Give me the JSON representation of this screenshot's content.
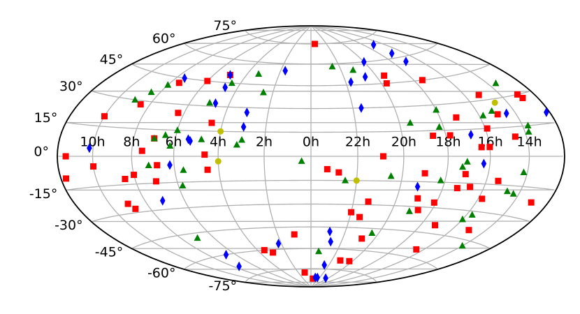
{
  "chart_data": {
    "type": "scatter",
    "projection": "hammer",
    "grid": true,
    "grid_color": "#b0b0b0",
    "xticks": [
      {
        "value": 10,
        "label": "10h"
      },
      {
        "value": 8,
        "label": "8h"
      },
      {
        "value": 6,
        "label": "6h"
      },
      {
        "value": 4,
        "label": "4h"
      },
      {
        "value": 2,
        "label": "2h"
      },
      {
        "value": 0,
        "label": "0h"
      },
      {
        "value": 22,
        "label": "22h"
      },
      {
        "value": 20,
        "label": "20h"
      },
      {
        "value": 18,
        "label": "18h"
      },
      {
        "value": 16,
        "label": "16h"
      },
      {
        "value": 14,
        "label": "14h"
      }
    ],
    "yticks": [
      {
        "value": -75,
        "label": "-75°"
      },
      {
        "value": -60,
        "label": "-60°"
      },
      {
        "value": -45,
        "label": "-45°"
      },
      {
        "value": -30,
        "label": "-30°"
      },
      {
        "value": -15,
        "label": "-15°"
      },
      {
        "value": 0,
        "label": "0°"
      },
      {
        "value": 15,
        "label": "15°"
      },
      {
        "value": 30,
        "label": "30°"
      },
      {
        "value": 45,
        "label": "45°"
      },
      {
        "value": 60,
        "label": "60°"
      },
      {
        "value": 75,
        "label": "75°"
      }
    ],
    "xlim": [
      0,
      24
    ],
    "ylim": [
      -90,
      90
    ],
    "series": [
      {
        "color": "#ff0000",
        "marker": "square",
        "x": [
          23.5,
          11.5,
          10,
          8.5,
          7.5,
          6,
          5,
          6.3,
          4.5,
          7,
          7.5,
          4.6,
          10,
          11.7,
          6.8,
          8,
          8.5,
          7,
          9,
          8.8,
          4.5,
          1,
          3.5,
          3,
          1,
          23.5,
          23.3,
          22.8,
          22,
          21.3,
          21.5,
          20.8,
          21.2,
          20.3,
          20.9,
          19.5,
          19.7,
          17.5,
          17.2,
          18.6,
          17.8,
          19,
          18.7,
          18.1,
          19,
          17.3,
          17.1,
          16.7,
          16.4,
          16,
          15.2,
          15.9,
          15,
          14.6,
          13,
          12.9,
          13,
          15,
          15.8,
          17.2,
          16.5,
          15.4
        ],
        "values": [
          75,
          0,
          20,
          28,
          42,
          45,
          50,
          25,
          20,
          10,
          3,
          1,
          -5,
          -10,
          -5,
          -10,
          -12,
          -14,
          -25,
          -28,
          -8,
          -50,
          -60,
          -62,
          -78,
          -83,
          -8,
          -10,
          -35,
          -28,
          -38,
          -52,
          -68,
          -68,
          0,
          50,
          45,
          45,
          22,
          12,
          12,
          -10,
          -32,
          -27,
          -25,
          -18,
          -10,
          -17,
          5,
          5,
          33,
          15,
          22,
          10,
          30,
          28,
          -22,
          -40,
          -23,
          -40,
          -55,
          -13
        ]
      },
      {
        "color": "#008000",
        "marker": "triangle",
        "x": [
          3.3,
          4.5,
          2.5,
          22.5,
          21.2,
          9,
          8.5,
          8,
          5,
          6.5,
          6,
          6.2,
          4.8,
          3.2,
          3,
          7,
          0.4,
          5.6,
          7.2,
          5.8,
          7,
          23.4,
          22.5,
          20.5,
          20.4,
          19.5,
          18,
          18.2,
          15.8,
          15.2,
          13.5,
          13.7,
          13.8,
          14.2,
          17.3,
          17.1,
          18.2,
          15.7,
          16,
          14.7,
          14,
          14.3,
          19.1
        ],
        "values": [
          52,
          45,
          40,
          58,
          55,
          30,
          35,
          40,
          32,
          12,
          15,
          6,
          10,
          7,
          10,
          10,
          -3,
          -8,
          -5,
          -17,
          -48,
          -62,
          -15,
          -12,
          -48,
          20,
          27,
          17,
          22,
          24,
          37,
          15,
          12,
          -8,
          -6,
          -3,
          -14,
          -32,
          -35,
          -18,
          -48,
          -19,
          -33
        ]
      },
      {
        "color": "#0000ff",
        "marker": "diamond",
        "x": [
          1.7,
          5,
          7.5,
          4.7,
          4.7,
          3,
          3,
          5.4,
          5.3,
          10.2,
          6.2,
          7.1,
          6.7,
          7.5,
          2.2,
          22.9,
          22.7,
          22.5,
          23,
          22.5,
          20.5,
          21.7,
          20.7,
          20,
          21.6,
          19.2,
          17,
          17,
          17,
          16.8,
          16.3,
          14.5,
          12.2
        ],
        "values": [
          55,
          50,
          45,
          42,
          32,
          27,
          18,
          10,
          9,
          4,
          -5,
          -25,
          -60,
          -68,
          -56,
          -48,
          -55,
          -72,
          -82,
          -82,
          -82,
          47,
          50,
          60,
          30,
          -18,
          70,
          63,
          57,
          12,
          -4,
          22,
          20
        ]
      },
      {
        "color": "#bfbf00",
        "marker": "circle",
        "x": [
          4,
          4,
          22,
          14.7
        ],
        "values": [
          15,
          -3,
          -15,
          28
        ]
      }
    ]
  }
}
